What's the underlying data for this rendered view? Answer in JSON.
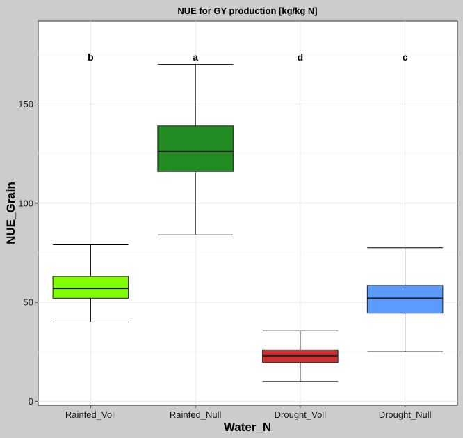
{
  "chart_data": {
    "type": "box",
    "title": "NUE for GY production [kg/kg N]",
    "xlabel": "Water_N",
    "ylabel": "NUE_Grain",
    "ylim": [
      -2,
      192
    ],
    "yticks": [
      0,
      50,
      100,
      150
    ],
    "grid": true,
    "legend": "none",
    "categories": [
      "Rainfed_Voll",
      "Rainfed_Null",
      "Drought_Voll",
      "Drought_Null"
    ],
    "boxes": [
      {
        "category": "Rainfed_Voll",
        "whisker_low": 40,
        "q1": 52,
        "median": 57,
        "q3": 63,
        "whisker_high": 79,
        "color": "#7fff00",
        "group_letter": "b"
      },
      {
        "category": "Rainfed_Null",
        "whisker_low": 84,
        "q1": 116,
        "median": 126,
        "q3": 139,
        "whisker_high": 170,
        "color": "#228b22",
        "group_letter": "a"
      },
      {
        "category": "Drought_Voll",
        "whisker_low": 10,
        "q1": 19.5,
        "median": 23,
        "q3": 26,
        "whisker_high": 35.5,
        "color": "#cd3333",
        "group_letter": "d"
      },
      {
        "category": "Drought_Null",
        "whisker_low": 25,
        "q1": 44.5,
        "median": 52,
        "q3": 58.5,
        "whisker_high": 77.5,
        "color": "#5b9bff",
        "group_letter": "c"
      }
    ],
    "letter_y": 174
  }
}
